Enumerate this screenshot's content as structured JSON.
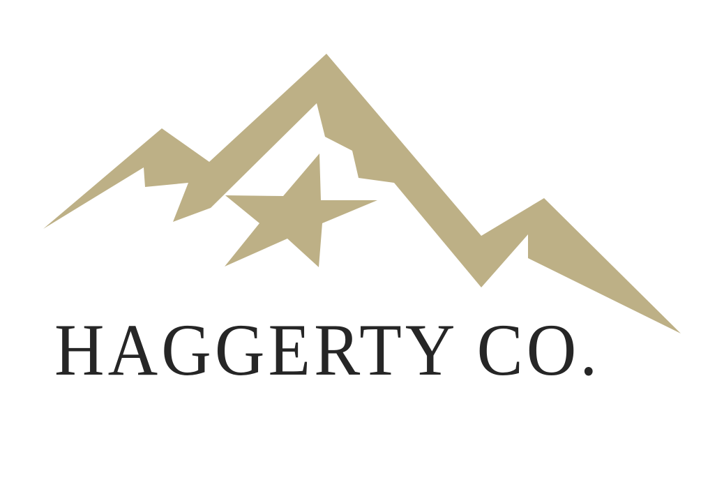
{
  "brand": {
    "name": "HAGGERTY CO.",
    "logo_color": "#BDB086",
    "text_color": "#262626",
    "icon": "mountain-star-icon"
  }
}
